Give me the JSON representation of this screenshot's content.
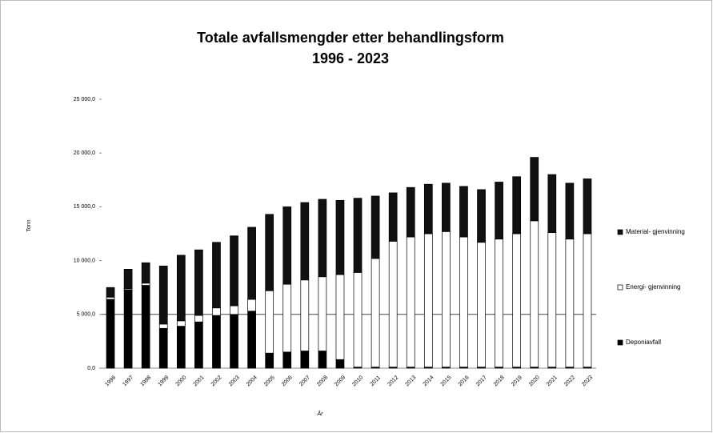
{
  "chart_data": {
    "type": "stacked_bar",
    "title": "Totale avfallsmengder etter behandlingsform",
    "subtitle": "1996 - 2023",
    "y_label": "Tonn",
    "x_label": "År",
    "categories": [
      "1996",
      "1997",
      "1998",
      "1999",
      "2000",
      "2001",
      "2002",
      "2003",
      "2004",
      "2005",
      "2006",
      "2007",
      "2008",
      "2009",
      "2010",
      "2011",
      "2012",
      "2013",
      "2014",
      "2015",
      "2016",
      "2017",
      "2018",
      "2019",
      "2020",
      "2021",
      "2022",
      "2023"
    ],
    "series": [
      {
        "name": "Deponiavfall",
        "color": "#000000",
        "values": [
          6400,
          7300,
          7700,
          3700,
          3900,
          4300,
          4900,
          5000,
          5300,
          1400,
          1500,
          1600,
          1600,
          800,
          100,
          100,
          100,
          100,
          100,
          100,
          100,
          100,
          100,
          100,
          100,
          100,
          100,
          100
        ]
      },
      {
        "name": "Energi- gjenvinning",
        "color": "#ffffff",
        "values": [
          200,
          100,
          200,
          400,
          500,
          600,
          700,
          800,
          1100,
          5800,
          6300,
          6600,
          6900,
          7900,
          8800,
          10100,
          11700,
          12100,
          12400,
          12600,
          12100,
          11600,
          11900,
          12400,
          13600,
          12500,
          11900,
          12400
        ]
      },
      {
        "name": "Material- gjenvinning",
        "color": "#111111",
        "values": [
          900,
          1800,
          1900,
          5400,
          6100,
          6100,
          6100,
          6500,
          6700,
          7100,
          7200,
          7200,
          7200,
          6900,
          6900,
          5800,
          4500,
          4600,
          4600,
          4500,
          4700,
          4900,
          5300,
          5300,
          5900,
          5400,
          5200,
          5100
        ]
      }
    ],
    "ylim": [
      0,
      25000
    ],
    "yticks": [
      {
        "value": 0,
        "label": "0,0"
      },
      {
        "value": 5000,
        "label": "5 000,0"
      },
      {
        "value": 10000,
        "label": "10 000,0"
      },
      {
        "value": 15000,
        "label": "15 000,0"
      },
      {
        "value": 20000,
        "label": "20 000,0"
      },
      {
        "value": 25000,
        "label": "25 000,0"
      }
    ],
    "reference_line": 5000,
    "legend": "right"
  }
}
